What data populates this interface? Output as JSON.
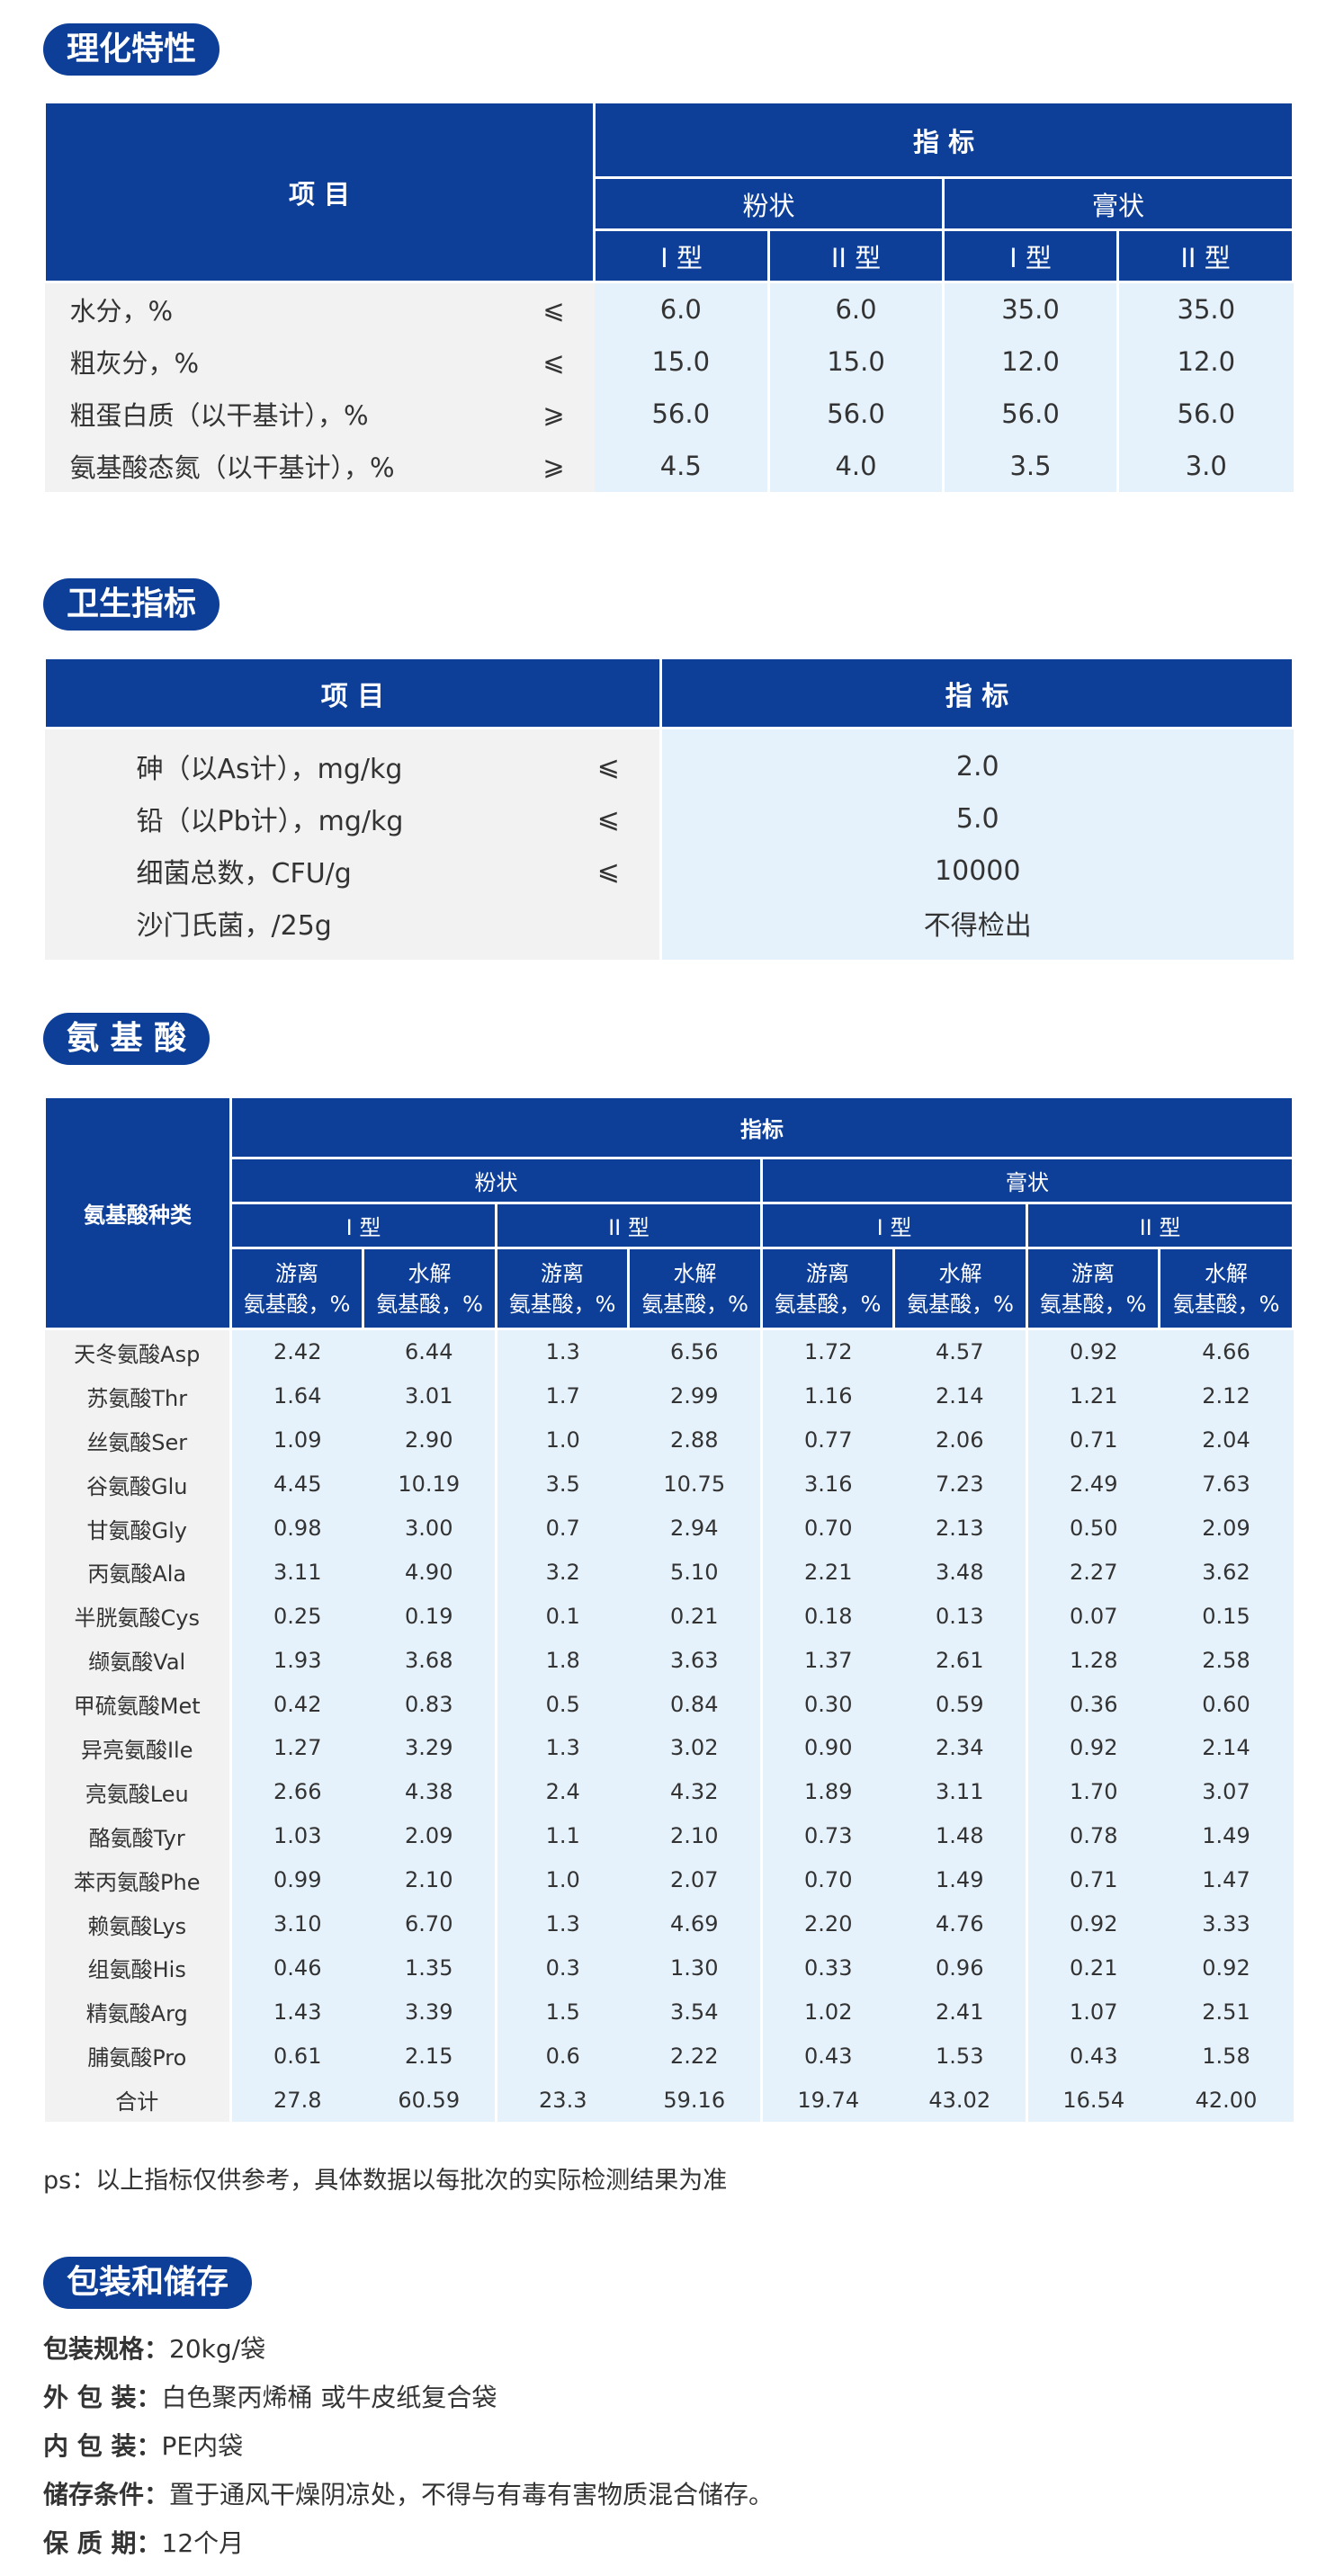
{
  "sections": {
    "phys": "理化特性",
    "hygiene": "卫生指标",
    "amino": "氨 基 酸",
    "package": "包装和储存"
  },
  "t1": {
    "item": "项  目",
    "index": "指 标",
    "powder": "粉状",
    "paste": "膏状",
    "type1": "I 型",
    "type2": "II 型",
    "rows": [
      {
        "name": "水分，%",
        "sym": "⩽",
        "v": [
          "6.0",
          "6.0",
          "35.0",
          "35.0"
        ]
      },
      {
        "name": "粗灰分，%",
        "sym": "⩽",
        "v": [
          "15.0",
          "15.0",
          "12.0",
          "12.0"
        ]
      },
      {
        "name": "粗蛋白质（以干基计），%",
        "sym": "⩾",
        "v": [
          "56.0",
          "56.0",
          "56.0",
          "56.0"
        ]
      },
      {
        "name": "氨基酸态氮（以干基计），%",
        "sym": "⩾",
        "v": [
          "4.5",
          "4.0",
          "3.5",
          "3.0"
        ]
      }
    ]
  },
  "t2": {
    "item": "项    目",
    "index": "指    标",
    "rows": [
      {
        "name": "砷（以As计），mg/kg",
        "sym": "⩽",
        "v": "2.0"
      },
      {
        "name": "铅（以Pb计），mg/kg",
        "sym": "⩽",
        "v": "5.0"
      },
      {
        "name": "细菌总数，CFU/g",
        "sym": "⩽",
        "v": "10000"
      },
      {
        "name": "沙门氏菌，/25g",
        "sym": "",
        "v": "不得检出"
      }
    ]
  },
  "t3": {
    "kind": "氨基酸种类",
    "index": "指标",
    "powder": "粉状",
    "paste": "膏状",
    "type1": "I 型",
    "type2": "II 型",
    "free1": "游离",
    "free2": "氨基酸，%",
    "hyd1": "水解",
    "hyd2": "氨基酸，%",
    "hyd2b": "氨基酸，%",
    "rows": [
      {
        "name": "天冬氨酸Asp",
        "v": [
          "2.42",
          "6.44",
          "1.3",
          "6.56",
          "1.72",
          "4.57",
          "0.92",
          "4.66"
        ]
      },
      {
        "name": "苏氨酸Thr",
        "v": [
          "1.64",
          "3.01",
          "1.7",
          "2.99",
          "1.16",
          "2.14",
          "1.21",
          "2.12"
        ]
      },
      {
        "name": "丝氨酸Ser",
        "v": [
          "1.09",
          "2.90",
          "1.0",
          "2.88",
          "0.77",
          "2.06",
          "0.71",
          "2.04"
        ]
      },
      {
        "name": "谷氨酸Glu",
        "v": [
          "4.45",
          "10.19",
          "3.5",
          "10.75",
          "3.16",
          "7.23",
          "2.49",
          "7.63"
        ]
      },
      {
        "name": "甘氨酸Gly",
        "v": [
          "0.98",
          "3.00",
          "0.7",
          "2.94",
          "0.70",
          "2.13",
          "0.50",
          "2.09"
        ]
      },
      {
        "name": "丙氨酸Ala",
        "v": [
          "3.11",
          "4.90",
          "3.2",
          "5.10",
          "2.21",
          "3.48",
          "2.27",
          "3.62"
        ]
      },
      {
        "name": "半胱氨酸Cys",
        "v": [
          "0.25",
          "0.19",
          "0.1",
          "0.21",
          "0.18",
          "0.13",
          "0.07",
          "0.15"
        ]
      },
      {
        "name": "缬氨酸Val",
        "v": [
          "1.93",
          "3.68",
          "1.8",
          "3.63",
          "1.37",
          "2.61",
          "1.28",
          "2.58"
        ]
      },
      {
        "name": "甲硫氨酸Met",
        "v": [
          "0.42",
          "0.83",
          "0.5",
          "0.84",
          "0.30",
          "0.59",
          "0.36",
          "0.60"
        ]
      },
      {
        "name": "异亮氨酸Ile",
        "v": [
          "1.27",
          "3.29",
          "1.3",
          "3.02",
          "0.90",
          "2.34",
          "0.92",
          "2.14"
        ]
      },
      {
        "name": "亮氨酸Leu",
        "v": [
          "2.66",
          "4.38",
          "2.4",
          "4.32",
          "1.89",
          "3.11",
          "1.70",
          "3.07"
        ]
      },
      {
        "name": "酪氨酸Tyr",
        "v": [
          "1.03",
          "2.09",
          "1.1",
          "2.10",
          "0.73",
          "1.48",
          "0.78",
          "1.49"
        ]
      },
      {
        "name": "苯丙氨酸Phe",
        "v": [
          "0.99",
          "2.10",
          "1.0",
          "2.07",
          "0.70",
          "1.49",
          "0.71",
          "1.47"
        ]
      },
      {
        "name": "赖氨酸Lys",
        "v": [
          "3.10",
          "6.70",
          "1.3",
          "4.69",
          "2.20",
          "4.76",
          "0.92",
          "3.33"
        ]
      },
      {
        "name": "组氨酸His",
        "v": [
          "0.46",
          "1.35",
          "0.3",
          "1.30",
          "0.33",
          "0.96",
          "0.21",
          "0.92"
        ]
      },
      {
        "name": "精氨酸Arg",
        "v": [
          "1.43",
          "3.39",
          "1.5",
          "3.54",
          "1.02",
          "2.41",
          "1.07",
          "2.51"
        ]
      },
      {
        "name": "脯氨酸Pro",
        "v": [
          "0.61",
          "2.15",
          "0.6",
          "2.22",
          "0.43",
          "1.53",
          "0.43",
          "1.58"
        ]
      },
      {
        "name": "合计",
        "v": [
          "27.8",
          "60.59",
          "23.3",
          "59.16",
          "19.74",
          "43.02",
          "16.54",
          "42.00"
        ]
      }
    ]
  },
  "note": "ps：以上指标仅供参考，具体数据以每批次的实际检测结果为准",
  "package": [
    {
      "k": "包装规格：",
      "v": "20kg/袋"
    },
    {
      "k": "外 包 装：",
      "v": "白色聚丙烯桶 或牛皮纸复合袋"
    },
    {
      "k": "内 包 装：",
      "v": "PE内袋"
    },
    {
      "k": "储存条件：",
      "v": "置于通风干燥阴凉处，不得与有毒有害物质混合储存。"
    },
    {
      "k": "保 质 期：",
      "v": "12个月"
    }
  ]
}
